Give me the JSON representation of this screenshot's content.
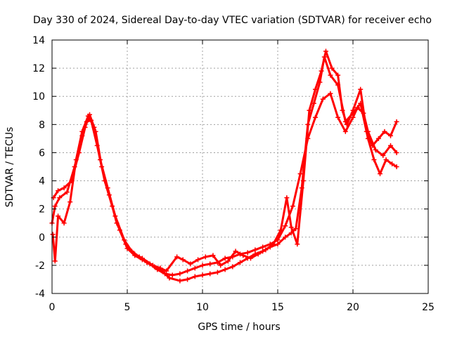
{
  "chart_data": {
    "type": "scatter",
    "title": "Day 330 of 2024, Sidereal Day-to-day VTEC variation (SDTVAR) for receiver echo",
    "xlabel": "GPS time / hours",
    "ylabel": "SDTVAR / TECUs",
    "xlim": [
      0,
      25
    ],
    "ylim": [
      -4,
      14
    ],
    "xticks": [
      "0",
      "5",
      "10",
      "15",
      "20",
      "25"
    ],
    "yticks": [
      "-4",
      "-2",
      "0",
      "2",
      "4",
      "6",
      "8",
      "10",
      "12",
      "14"
    ],
    "grid": true,
    "marker": "plus",
    "color": "#ff0000",
    "series": [
      {
        "name": "trace-1",
        "points": [
          [
            0.0,
            1.0
          ],
          [
            0.2,
            2.2
          ],
          [
            0.5,
            2.8
          ],
          [
            1.0,
            3.2
          ],
          [
            1.5,
            5.0
          ],
          [
            2.0,
            7.2
          ],
          [
            2.3,
            8.2
          ],
          [
            2.6,
            8.3
          ],
          [
            3.0,
            6.5
          ],
          [
            3.5,
            4.0
          ],
          [
            4.0,
            2.2
          ],
          [
            4.5,
            0.5
          ],
          [
            5.0,
            -0.8
          ],
          [
            5.5,
            -1.3
          ],
          [
            6.0,
            -1.6
          ],
          [
            6.5,
            -1.9
          ],
          [
            7.0,
            -2.3
          ],
          [
            7.5,
            -2.6
          ],
          [
            8.0,
            -2.7
          ],
          [
            8.5,
            -2.6
          ],
          [
            9.0,
            -2.4
          ],
          [
            9.5,
            -2.2
          ],
          [
            10.0,
            -2.0
          ],
          [
            10.5,
            -1.9
          ],
          [
            11.0,
            -1.8
          ],
          [
            11.5,
            -1.5
          ],
          [
            12.0,
            -1.4
          ],
          [
            12.5,
            -1.2
          ],
          [
            13.0,
            -1.1
          ],
          [
            13.5,
            -0.9
          ],
          [
            14.0,
            -0.7
          ],
          [
            14.5,
            -0.5
          ],
          [
            15.0,
            -0.2
          ],
          [
            15.5,
            0.8
          ],
          [
            16.0,
            2.2
          ],
          [
            16.5,
            4.5
          ],
          [
            17.0,
            7.0
          ],
          [
            17.5,
            8.5
          ],
          [
            18.0,
            9.8
          ],
          [
            18.5,
            10.2
          ],
          [
            19.0,
            8.5
          ],
          [
            19.5,
            7.5
          ],
          [
            20.0,
            8.5
          ],
          [
            20.3,
            9.2
          ],
          [
            20.7,
            8.8
          ],
          [
            21.0,
            7.5
          ],
          [
            21.5,
            6.2
          ],
          [
            22.0,
            5.8
          ],
          [
            22.5,
            6.5
          ],
          [
            22.9,
            6.0
          ]
        ]
      },
      {
        "name": "trace-2",
        "points": [
          [
            0.05,
            0.2
          ],
          [
            0.2,
            -1.7
          ],
          [
            0.4,
            1.5
          ],
          [
            0.8,
            1.0
          ],
          [
            1.2,
            2.5
          ],
          [
            1.6,
            5.5
          ],
          [
            2.0,
            7.5
          ],
          [
            2.4,
            8.6
          ],
          [
            2.8,
            7.8
          ],
          [
            3.2,
            5.5
          ],
          [
            3.7,
            3.5
          ],
          [
            4.2,
            1.5
          ],
          [
            4.8,
            -0.2
          ],
          [
            5.3,
            -1.0
          ],
          [
            5.8,
            -1.4
          ],
          [
            6.3,
            -1.8
          ],
          [
            6.8,
            -2.1
          ],
          [
            7.3,
            -2.4
          ],
          [
            7.8,
            -2.9
          ],
          [
            8.5,
            -3.1
          ],
          [
            9.0,
            -3.0
          ],
          [
            9.5,
            -2.8
          ],
          [
            10.0,
            -2.7
          ],
          [
            10.5,
            -2.6
          ],
          [
            11.0,
            -2.5
          ],
          [
            11.5,
            -2.3
          ],
          [
            12.0,
            -2.1
          ],
          [
            12.5,
            -1.8
          ],
          [
            13.0,
            -1.5
          ],
          [
            13.5,
            -1.2
          ],
          [
            14.0,
            -1.0
          ],
          [
            14.5,
            -0.7
          ],
          [
            15.0,
            -0.5
          ],
          [
            15.5,
            0.0
          ],
          [
            15.9,
            0.3
          ],
          [
            16.2,
            0.6
          ],
          [
            16.6,
            3.5
          ],
          [
            17.0,
            8.0
          ],
          [
            17.4,
            9.5
          ],
          [
            17.8,
            11.0
          ],
          [
            18.1,
            12.8
          ],
          [
            18.5,
            11.5
          ],
          [
            19.0,
            10.8
          ],
          [
            19.5,
            8.2
          ],
          [
            20.0,
            8.8
          ],
          [
            20.5,
            9.5
          ],
          [
            21.0,
            7.0
          ],
          [
            21.4,
            5.5
          ],
          [
            21.8,
            4.5
          ],
          [
            22.2,
            5.5
          ],
          [
            22.6,
            5.2
          ],
          [
            22.9,
            5.0
          ]
        ]
      },
      {
        "name": "trace-3",
        "points": [
          [
            0.1,
            2.8
          ],
          [
            0.4,
            3.3
          ],
          [
            0.8,
            3.5
          ],
          [
            1.3,
            4.0
          ],
          [
            1.8,
            6.0
          ],
          [
            2.2,
            7.8
          ],
          [
            2.5,
            8.7
          ],
          [
            2.9,
            7.5
          ],
          [
            3.3,
            5.0
          ],
          [
            3.8,
            3.0
          ],
          [
            4.3,
            1.0
          ],
          [
            4.9,
            -0.5
          ],
          [
            5.5,
            -1.2
          ],
          [
            6.0,
            -1.5
          ],
          [
            6.7,
            -2.0
          ],
          [
            7.2,
            -2.2
          ],
          [
            7.6,
            -2.4
          ],
          [
            8.3,
            -1.4
          ],
          [
            8.7,
            -1.6
          ],
          [
            9.2,
            -1.9
          ],
          [
            9.7,
            -1.6
          ],
          [
            10.2,
            -1.4
          ],
          [
            10.7,
            -1.3
          ],
          [
            11.2,
            -2.0
          ],
          [
            11.7,
            -1.7
          ],
          [
            12.2,
            -1.0
          ],
          [
            12.7,
            -1.3
          ],
          [
            13.2,
            -1.5
          ],
          [
            13.7,
            -1.2
          ],
          [
            14.2,
            -0.9
          ],
          [
            14.7,
            -0.5
          ],
          [
            15.2,
            0.5
          ],
          [
            15.6,
            2.8
          ],
          [
            15.9,
            0.7
          ],
          [
            16.3,
            -0.5
          ],
          [
            16.7,
            4.0
          ],
          [
            17.1,
            9.0
          ],
          [
            17.5,
            10.5
          ],
          [
            17.9,
            11.8
          ],
          [
            18.2,
            13.2
          ],
          [
            18.6,
            12.0
          ],
          [
            19.0,
            11.5
          ],
          [
            19.3,
            9.0
          ],
          [
            19.6,
            8.0
          ],
          [
            20.0,
            9.0
          ],
          [
            20.5,
            10.5
          ],
          [
            20.9,
            7.5
          ],
          [
            21.3,
            6.5
          ],
          [
            21.7,
            7.0
          ],
          [
            22.1,
            7.5
          ],
          [
            22.5,
            7.2
          ],
          [
            22.9,
            8.2
          ]
        ]
      }
    ]
  }
}
